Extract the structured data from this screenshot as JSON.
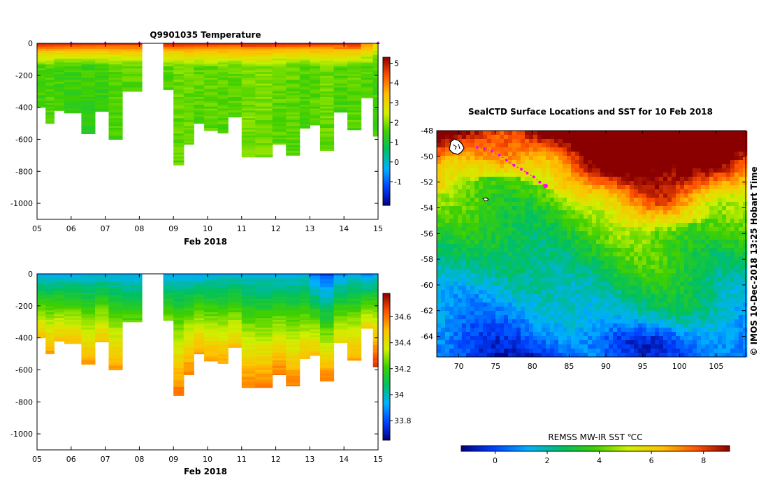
{
  "chart_data": [
    {
      "type": "heatmap",
      "title": "Q9901035  Temperature",
      "xlabel": "Feb 2018",
      "ylabel": "",
      "xticks": [
        "05",
        "06",
        "07",
        "08",
        "09",
        "10",
        "11",
        "12",
        "13",
        "14",
        "15"
      ],
      "yticks": [
        "0",
        "-200",
        "-400",
        "-600",
        "-800",
        "-1000"
      ],
      "ylim": [
        -1100,
        0
      ],
      "xlim": [
        5,
        15
      ],
      "colorbar_ticks": [
        "5",
        "4",
        "3",
        "2",
        "1",
        "0",
        "-1"
      ],
      "colorbar_range": [
        -2.2,
        5.3
      ],
      "profiles": [
        {
          "day": 5.0,
          "depth": 400,
          "surface": 5.0,
          "deep": 1.6
        },
        {
          "day": 5.25,
          "depth": 500,
          "surface": 5.0,
          "deep": 1.7
        },
        {
          "day": 5.5,
          "depth": 420,
          "surface": 5.0,
          "deep": 1.6
        },
        {
          "day": 5.8,
          "depth": 435,
          "surface": 5.0,
          "deep": 1.5
        },
        {
          "day": 6.3,
          "depth": 565,
          "surface": 5.0,
          "deep": 1.5
        },
        {
          "day": 6.7,
          "depth": 425,
          "surface": 5.0,
          "deep": 1.5
        },
        {
          "day": 7.1,
          "depth": 600,
          "surface": 5.0,
          "deep": 1.7
        },
        {
          "day": 7.5,
          "depth": 300,
          "surface": 5.0,
          "deep": 1.8
        },
        {
          "day": 8.7,
          "depth": 290,
          "surface": 5.0,
          "deep": 1.8
        },
        {
          "day": 9.0,
          "depth": 760,
          "surface": 5.0,
          "deep": 1.9
        },
        {
          "day": 9.3,
          "depth": 630,
          "surface": 5.0,
          "deep": 1.9
        },
        {
          "day": 9.6,
          "depth": 500,
          "surface": 5.0,
          "deep": 1.8
        },
        {
          "day": 9.9,
          "depth": 545,
          "surface": 5.0,
          "deep": 1.8
        },
        {
          "day": 10.3,
          "depth": 560,
          "surface": 5.0,
          "deep": 1.8
        },
        {
          "day": 10.6,
          "depth": 460,
          "surface": 5.0,
          "deep": 1.8
        },
        {
          "day": 11.0,
          "depth": 710,
          "surface": 5.0,
          "deep": 2.0
        },
        {
          "day": 11.4,
          "depth": 710,
          "surface": 5.0,
          "deep": 2.0
        },
        {
          "day": 11.9,
          "depth": 630,
          "surface": 5.0,
          "deep": 1.8
        },
        {
          "day": 12.3,
          "depth": 700,
          "surface": 5.0,
          "deep": 1.8
        },
        {
          "day": 12.7,
          "depth": 530,
          "surface": 5.0,
          "deep": 1.7
        },
        {
          "day": 13.0,
          "depth": 510,
          "surface": 5.0,
          "deep": 1.8
        },
        {
          "day": 13.3,
          "depth": 670,
          "surface": 5.0,
          "deep": 1.9
        },
        {
          "day": 13.7,
          "depth": 430,
          "surface": 5.0,
          "deep": 1.7
        },
        {
          "day": 14.1,
          "depth": 540,
          "surface": 5.0,
          "deep": 1.8
        },
        {
          "day": 14.5,
          "depth": 340,
          "surface": 4.0,
          "deep": 1.7
        },
        {
          "day": 14.85,
          "depth": 580,
          "surface": 3.0,
          "deep": 1.6
        }
      ],
      "surface_markers": [
        6.0,
        7.0,
        8.0,
        9.0,
        10.0,
        11.0,
        12.0,
        13.0,
        14.0,
        15.0
      ]
    },
    {
      "type": "heatmap",
      "title": "",
      "xlabel": "Feb 2018",
      "ylabel": "",
      "xticks": [
        "05",
        "06",
        "07",
        "08",
        "09",
        "10",
        "11",
        "12",
        "13",
        "14",
        "15"
      ],
      "yticks": [
        "0",
        "-200",
        "-400",
        "-600",
        "-800",
        "-1000"
      ],
      "ylim": [
        -1100,
        0
      ],
      "xlim": [
        5,
        15
      ],
      "colorbar_ticks": [
        "34.6",
        "34.4",
        "34.2",
        "34",
        "33.8"
      ],
      "colorbar_range": [
        33.65,
        34.78
      ],
      "profiles": [
        {
          "day": 5.0,
          "depth": 400,
          "surface": 33.95,
          "deep": 34.5
        },
        {
          "day": 5.25,
          "depth": 500,
          "surface": 33.95,
          "deep": 34.55
        },
        {
          "day": 5.5,
          "depth": 420,
          "surface": 33.95,
          "deep": 34.5
        },
        {
          "day": 5.8,
          "depth": 435,
          "surface": 33.95,
          "deep": 34.5
        },
        {
          "day": 6.3,
          "depth": 565,
          "surface": 33.95,
          "deep": 34.55
        },
        {
          "day": 6.7,
          "depth": 425,
          "surface": 33.95,
          "deep": 34.5
        },
        {
          "day": 7.1,
          "depth": 600,
          "surface": 33.95,
          "deep": 34.55
        },
        {
          "day": 7.5,
          "depth": 300,
          "surface": 33.95,
          "deep": 34.25
        },
        {
          "day": 8.7,
          "depth": 290,
          "surface": 33.95,
          "deep": 34.3
        },
        {
          "day": 9.0,
          "depth": 760,
          "surface": 33.95,
          "deep": 34.62
        },
        {
          "day": 9.3,
          "depth": 630,
          "surface": 33.95,
          "deep": 34.6
        },
        {
          "day": 9.6,
          "depth": 500,
          "surface": 33.95,
          "deep": 34.55
        },
        {
          "day": 9.9,
          "depth": 545,
          "surface": 33.95,
          "deep": 34.55
        },
        {
          "day": 10.3,
          "depth": 560,
          "surface": 33.95,
          "deep": 34.55
        },
        {
          "day": 10.6,
          "depth": 460,
          "surface": 33.95,
          "deep": 34.5
        },
        {
          "day": 11.0,
          "depth": 710,
          "surface": 33.95,
          "deep": 34.6
        },
        {
          "day": 11.4,
          "depth": 710,
          "surface": 33.95,
          "deep": 34.6
        },
        {
          "day": 11.9,
          "depth": 630,
          "surface": 33.95,
          "deep": 34.6
        },
        {
          "day": 12.3,
          "depth": 700,
          "surface": 33.95,
          "deep": 34.6
        },
        {
          "day": 12.7,
          "depth": 530,
          "surface": 33.95,
          "deep": 34.5
        },
        {
          "day": 13.0,
          "depth": 510,
          "surface": 33.85,
          "deep": 34.5
        },
        {
          "day": 13.3,
          "depth": 670,
          "surface": 33.8,
          "deep": 34.6
        },
        {
          "day": 13.7,
          "depth": 430,
          "surface": 33.9,
          "deep": 34.45
        },
        {
          "day": 14.1,
          "depth": 540,
          "surface": 33.95,
          "deep": 34.55
        },
        {
          "day": 14.5,
          "depth": 340,
          "surface": 33.9,
          "deep": 34.45
        },
        {
          "day": 14.85,
          "depth": 580,
          "surface": 33.95,
          "deep": 34.7
        }
      ]
    },
    {
      "type": "heatmap",
      "title": "SealCTD Surface Locations and SST for 10 Feb 2018",
      "xlabel": "",
      "ylabel": "",
      "xticks": [
        "70",
        "75",
        "80",
        "85",
        "90",
        "95",
        "100",
        "105"
      ],
      "yticks": [
        "-48",
        "-50",
        "-52",
        "-54",
        "-56",
        "-58",
        "-60",
        "-62",
        "-64"
      ],
      "xlim": [
        67,
        109
      ],
      "ylim": [
        -65.6,
        -48
      ],
      "colorbar_label": "REMSS MW-IR SST ℃C",
      "colorbar_ticks": [
        "0",
        "2",
        "4",
        "6",
        "8"
      ],
      "colorbar_range": [
        -1.3,
        9.0
      ],
      "track": [
        {
          "lon": 72.5,
          "lat": -49.3
        },
        {
          "lon": 73.5,
          "lat": -49.4
        },
        {
          "lon": 74.5,
          "lat": -49.6
        },
        {
          "lon": 75.5,
          "lat": -49.9
        },
        {
          "lon": 76.5,
          "lat": -50.3
        },
        {
          "lon": 77.5,
          "lat": -50.7
        },
        {
          "lon": 78.5,
          "lat": -51.0
        },
        {
          "lon": 79.3,
          "lat": -51.3
        },
        {
          "lon": 80.2,
          "lat": -51.6
        },
        {
          "lon": 81.0,
          "lat": -52.0
        },
        {
          "lon": 81.8,
          "lat": -52.3
        }
      ],
      "side_label": "©  IMOS 10-Dec-2018 13:25 Hobart Time"
    }
  ]
}
